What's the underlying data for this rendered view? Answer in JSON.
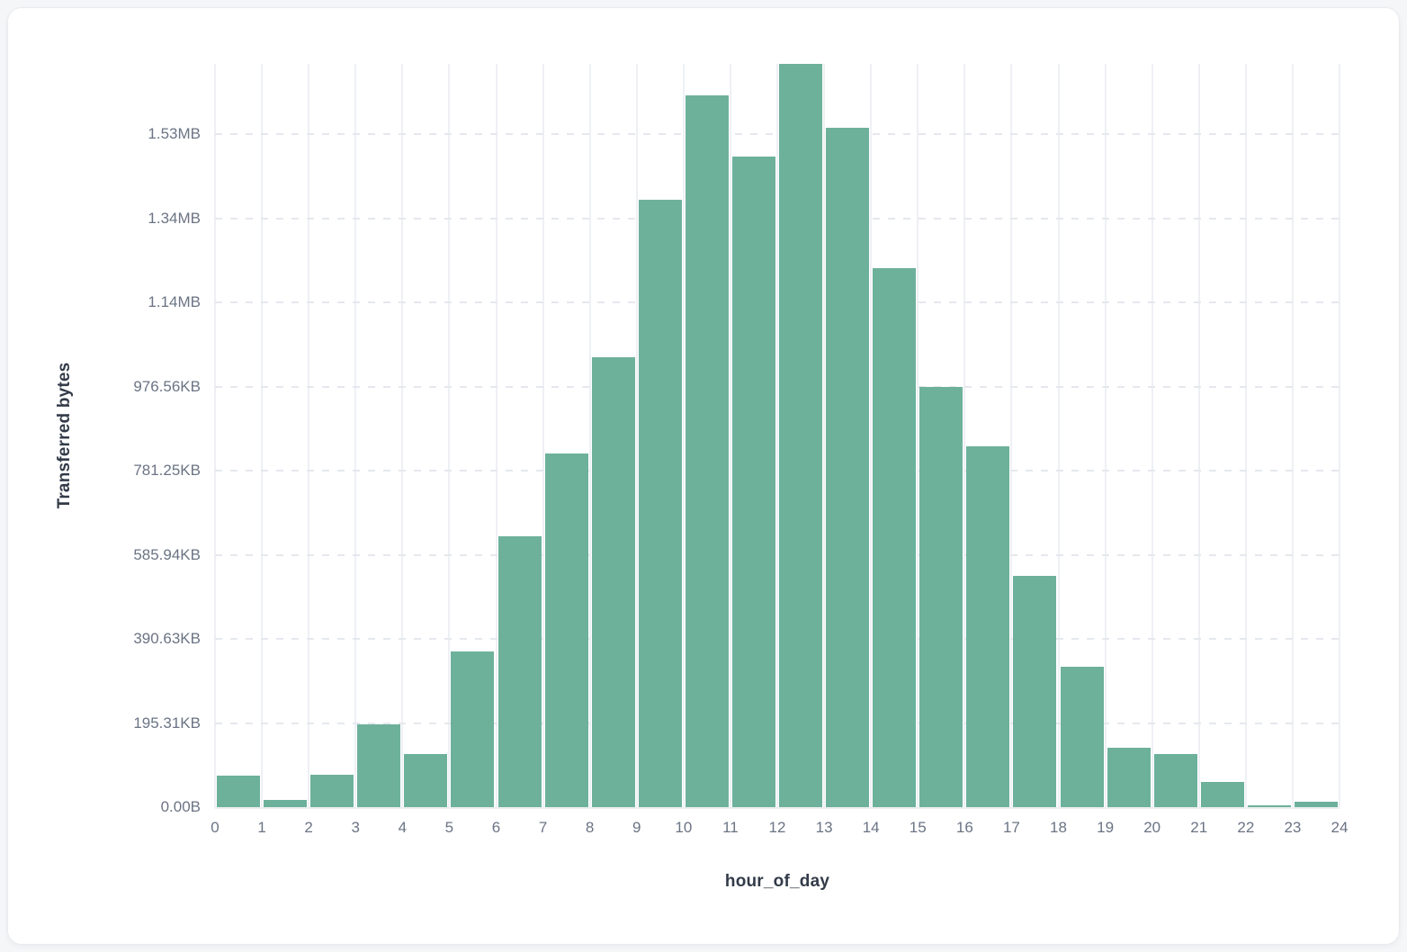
{
  "colors": {
    "bar": "#6db19b",
    "page_background": "#f4f6f8",
    "card_background": "#ffffff",
    "vertical_grid": "#eef0f4",
    "horizontal_grid_dashed": "#e5e8ee",
    "tick_text": "#6b7484",
    "axis_title_text": "#333b49"
  },
  "chart_data": {
    "type": "bar",
    "title": "",
    "xlabel": "hour_of_day",
    "ylabel": "Transferred bytes",
    "categories_bin_start_hour": [
      0,
      1,
      2,
      3,
      4,
      5,
      6,
      7,
      8,
      9,
      10,
      11,
      12,
      13,
      14,
      15,
      16,
      17,
      18,
      19,
      20,
      21,
      22,
      23
    ],
    "values_bytes": [
      75000,
      17000,
      77000,
      197000,
      126000,
      371000,
      643000,
      840000,
      1069000,
      1444000,
      1693000,
      1547000,
      1766000,
      1616000,
      1281000,
      998000,
      857000,
      549000,
      334000,
      141000,
      126000,
      60000,
      4300,
      12900
    ],
    "x_tick_labels": [
      "0",
      "1",
      "2",
      "3",
      "4",
      "5",
      "6",
      "7",
      "8",
      "9",
      "10",
      "11",
      "12",
      "13",
      "14",
      "15",
      "16",
      "17",
      "18",
      "19",
      "20",
      "21",
      "22",
      "23",
      "24"
    ],
    "y_ticks": [
      {
        "label": "0.00B",
        "bytes": 0
      },
      {
        "label": "195.31KB",
        "bytes": 200000
      },
      {
        "label": "390.63KB",
        "bytes": 400000
      },
      {
        "label": "585.94KB",
        "bytes": 600000
      },
      {
        "label": "781.25KB",
        "bytes": 800000
      },
      {
        "label": "976.56KB",
        "bytes": 1000000
      },
      {
        "label": "1.14MB",
        "bytes": 1200000
      },
      {
        "label": "1.34MB",
        "bytes": 1400000
      },
      {
        "label": "1.53MB",
        "bytes": 1600000
      }
    ],
    "ylim_bytes": [
      0,
      1767000
    ],
    "xlim_hours": [
      0,
      24
    ],
    "grid": true,
    "legend": false
  }
}
